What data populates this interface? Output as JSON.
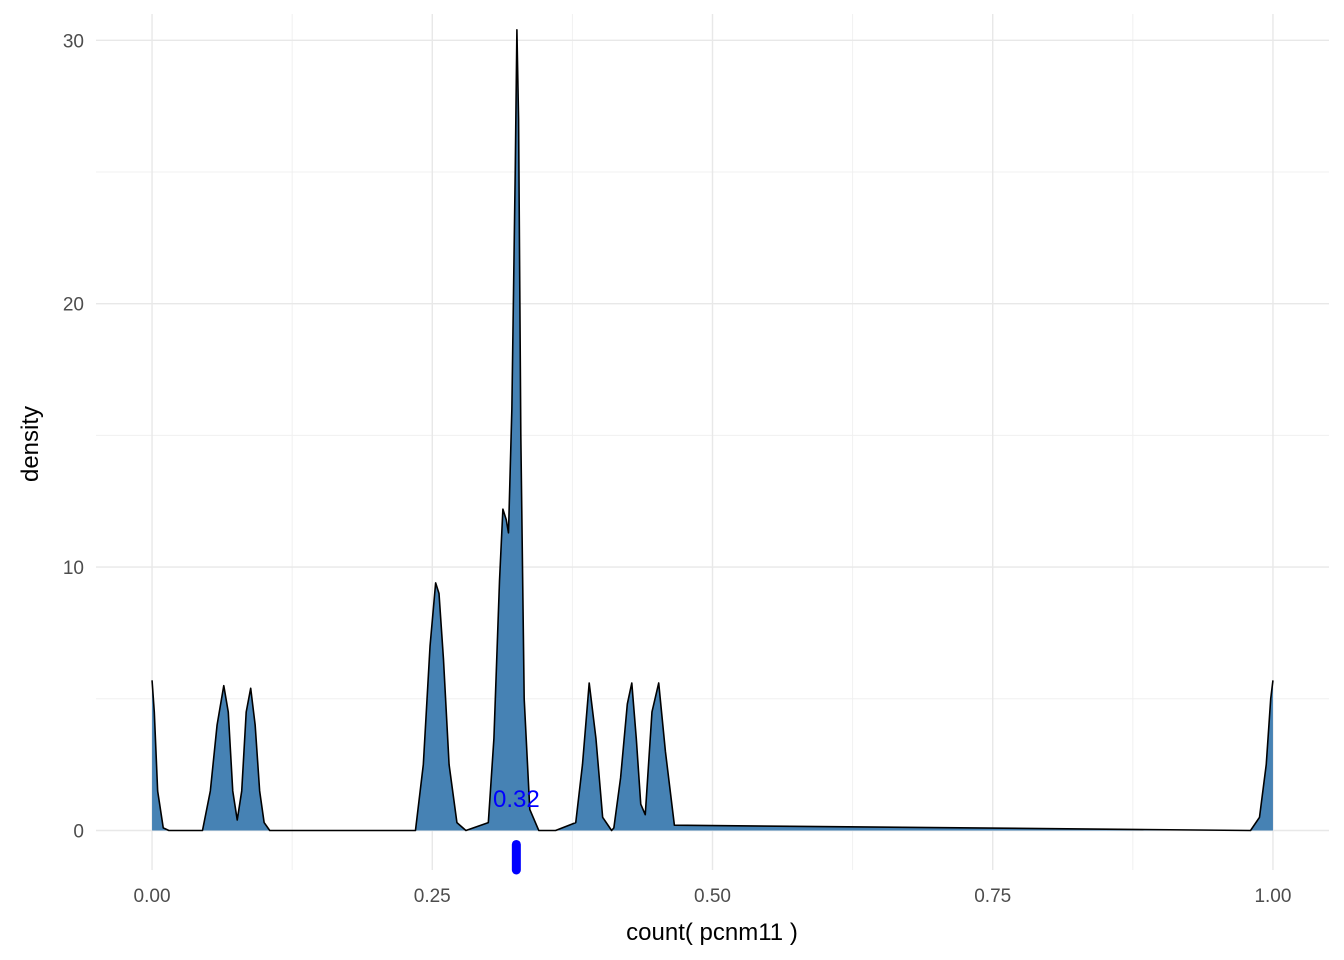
{
  "chart_data": {
    "type": "area",
    "title": "",
    "xlabel": "count( pcnm11 )",
    "ylabel": "density",
    "xlim": [
      -0.05,
      1.05
    ],
    "ylim": [
      -1.5,
      31.0
    ],
    "x_ticks": [
      {
        "value": 0.0,
        "label": "0.00"
      },
      {
        "value": 0.25,
        "label": "0.25"
      },
      {
        "value": 0.5,
        "label": "0.50"
      },
      {
        "value": 0.75,
        "label": "0.75"
      },
      {
        "value": 1.0,
        "label": "1.00"
      }
    ],
    "y_ticks": [
      {
        "value": 0,
        "label": "0"
      },
      {
        "value": 10,
        "label": "10"
      },
      {
        "value": 20,
        "label": "20"
      },
      {
        "value": 30,
        "label": "30"
      }
    ],
    "x_minor_ticks": [
      0.125,
      0.375,
      0.625,
      0.875
    ],
    "y_minor_ticks": [
      5,
      15,
      25
    ],
    "grid": true,
    "fill_color": "#4682b4",
    "line_color": "#000000",
    "series": [
      {
        "x": [
          0.0,
          0.002,
          0.005,
          0.01,
          0.015,
          0.045,
          0.052,
          0.058,
          0.064,
          0.068,
          0.072,
          0.076,
          0.08,
          0.084,
          0.088,
          0.092,
          0.096,
          0.1,
          0.105,
          0.11,
          0.235,
          0.242,
          0.248,
          0.253,
          0.256,
          0.26,
          0.265,
          0.272,
          0.28,
          0.3,
          0.305,
          0.31,
          0.313,
          0.316,
          0.318,
          0.321,
          0.324,
          0.3255,
          0.327,
          0.329,
          0.332,
          0.337,
          0.345,
          0.36,
          0.378,
          0.384,
          0.39,
          0.396,
          0.402,
          0.41,
          0.412,
          0.418,
          0.424,
          0.428,
          0.432,
          0.436,
          0.44,
          0.446,
          0.452,
          0.458,
          0.466,
          0.98,
          0.988,
          0.994,
          0.998,
          1.0
        ],
        "y": [
          5.7,
          4.5,
          1.5,
          0.1,
          0.0,
          0.0,
          1.5,
          4.0,
          5.5,
          4.5,
          1.5,
          0.4,
          1.5,
          4.5,
          5.4,
          4.0,
          1.5,
          0.3,
          0.0,
          0.0,
          0.0,
          2.5,
          7.0,
          9.4,
          9.0,
          6.5,
          2.5,
          0.3,
          0.0,
          0.3,
          3.5,
          9.5,
          12.2,
          11.8,
          11.3,
          16.0,
          25.0,
          30.4,
          27.0,
          15.0,
          5.0,
          0.8,
          0.0,
          0.0,
          0.3,
          2.5,
          5.6,
          3.5,
          0.5,
          0.0,
          0.1,
          2.0,
          4.8,
          5.6,
          3.5,
          1.0,
          0.6,
          4.5,
          5.6,
          3.0,
          0.2,
          0.0,
          0.5,
          2.5,
          5.0,
          5.7
        ]
      }
    ],
    "annotations": [
      {
        "text": "0.32",
        "x": 0.325,
        "y": 1.2,
        "color": "#0000ff"
      }
    ],
    "rug": {
      "x": 0.325,
      "color": "#0000ff"
    }
  }
}
